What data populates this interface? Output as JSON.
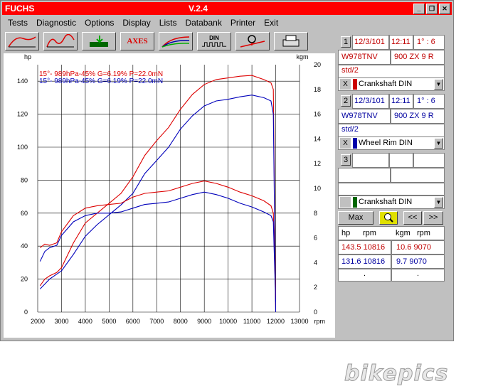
{
  "window": {
    "app_name": "FUCHS",
    "version": "V.2.4",
    "controls": [
      "_",
      "❐",
      "✕"
    ]
  },
  "menu": [
    "Tests",
    "Diagnostic",
    "Options",
    "Display",
    "Lists",
    "Databank",
    "Printer",
    "Exit"
  ],
  "toolbar": {
    "buttons": [
      "curve-view",
      "multi-curve",
      "export",
      "AXES",
      "overlay",
      "DIN",
      "sensor",
      "print"
    ],
    "axes_label": "AXES",
    "din_label": "DIN"
  },
  "chart_data": {
    "type": "line",
    "x_unit": "rpm",
    "left_unit": "hp",
    "right_unit": "kgm",
    "xlim": [
      2000,
      13000
    ],
    "left_ylim": [
      0,
      150
    ],
    "right_ylim": [
      0,
      20
    ],
    "x_ticks": [
      "2000",
      "3000",
      "4000",
      "5000",
      "6000",
      "7000",
      "8000",
      "9000",
      "10000",
      "11000",
      "12000",
      "13000"
    ],
    "left_ticks": [
      "0",
      "20",
      "40",
      "60",
      "80",
      "100",
      "120",
      "140"
    ],
    "right_ticks": [
      "0",
      "2",
      "4",
      "6",
      "8",
      "10",
      "12",
      "14",
      "16",
      "18",
      "20"
    ],
    "legend": [
      {
        "text": "15°- 989hPa-45% G=6.19% P=22.0mN",
        "color": "#dd0000"
      },
      {
        "text": "15°- 989hPa-45% G=6.19% P=22.0mN",
        "color": "#0000bb"
      }
    ],
    "series": [
      {
        "name": "hp",
        "axis": "left",
        "color": "#dd0000",
        "x": [
          2100,
          2300,
          2500,
          2800,
          3000,
          3500,
          4000,
          4500,
          5000,
          5500,
          6000,
          6500,
          7000,
          7500,
          8000,
          8500,
          9000,
          9500,
          10000,
          10500,
          11000,
          11500,
          11800,
          11900,
          12000
        ],
        "y": [
          16,
          20,
          22,
          24,
          27,
          42,
          54,
          60,
          66,
          72,
          82,
          95,
          104,
          112,
          123,
          132,
          138,
          141,
          142,
          143,
          143.5,
          141,
          139,
          135,
          0
        ]
      },
      {
        "name": "hp",
        "axis": "left",
        "color": "#0000bb",
        "x": [
          2100,
          2300,
          2500,
          2800,
          3000,
          3500,
          4000,
          4500,
          5000,
          5500,
          6000,
          6500,
          7000,
          7500,
          8000,
          8500,
          9000,
          9500,
          10000,
          10500,
          11000,
          11500,
          11800,
          11900,
          12000
        ],
        "y": [
          14,
          17,
          20,
          23,
          25,
          35,
          46,
          53,
          59,
          65,
          72,
          84,
          92,
          100,
          111,
          119,
          125,
          128,
          129,
          130.5,
          131.6,
          130,
          128,
          120,
          0
        ]
      },
      {
        "name": "kgm",
        "axis": "right",
        "color": "#dd0000",
        "x": [
          2100,
          2300,
          2500,
          2800,
          3000,
          3500,
          4000,
          4500,
          5000,
          5500,
          6000,
          6500,
          7000,
          7500,
          8000,
          8500,
          9000,
          9500,
          10000,
          10500,
          11000,
          11500,
          11800,
          11900,
          12000
        ],
        "y": [
          5.2,
          5.5,
          5.4,
          5.6,
          6.5,
          7.8,
          8.4,
          8.6,
          8.7,
          8.8,
          9.3,
          9.6,
          9.7,
          9.8,
          10.1,
          10.4,
          10.6,
          10.4,
          10.1,
          9.7,
          9.4,
          9.0,
          8.6,
          8.0,
          1.0
        ]
      },
      {
        "name": "kgm",
        "axis": "right",
        "color": "#0000bb",
        "x": [
          2100,
          2300,
          2500,
          2800,
          3000,
          3500,
          4000,
          4500,
          5000,
          5500,
          6000,
          6500,
          7000,
          7500,
          8000,
          8500,
          9000,
          9500,
          10000,
          10500,
          11000,
          11500,
          11800,
          11900,
          12000
        ],
        "y": [
          4.1,
          4.9,
          5.2,
          5.4,
          6.2,
          7.3,
          7.8,
          8.0,
          8.0,
          8.1,
          8.4,
          8.7,
          8.8,
          8.9,
          9.2,
          9.5,
          9.7,
          9.5,
          9.2,
          8.8,
          8.5,
          8.1,
          7.8,
          7.3,
          0.8
        ]
      }
    ]
  },
  "panel": {
    "run1": {
      "num": "1",
      "date": "12/3/101",
      "time": "12:11",
      "ratio": "1° : 6",
      "plate": "W978TNV",
      "model": "900 ZX 9 R",
      "std": "std/2",
      "mode": "Crankshaft DIN",
      "swatch": "#cc0000"
    },
    "run2": {
      "num": "2",
      "date": "12/3/101",
      "time": "12:11",
      "ratio": "1° : 6",
      "plate": "W978TNV",
      "model": "900 ZX 9 R",
      "std": "std/2",
      "mode": "Wheel Rim DIN",
      "swatch": "#0000aa"
    },
    "run3": {
      "num": "3"
    },
    "global_mode": "Crankshaft DIN",
    "global_swatch": "#006600",
    "max_label": "Max",
    "prev_label": "<<",
    "next_label": ">>",
    "x_label": "X",
    "headers": {
      "hp": "hp",
      "rpm1": "rpm",
      "kgm": "kgm",
      "rpm2": "rpm"
    },
    "rows": [
      {
        "hp": "143.5 10816",
        "kgm": "10.6  9070",
        "color": "#cc0000"
      },
      {
        "hp": "131.6 10816",
        "kgm": "9.7  9070",
        "color": "#0000aa"
      },
      {
        "hp": ".",
        "kgm": "."
      }
    ]
  },
  "watermark": "bikepics"
}
